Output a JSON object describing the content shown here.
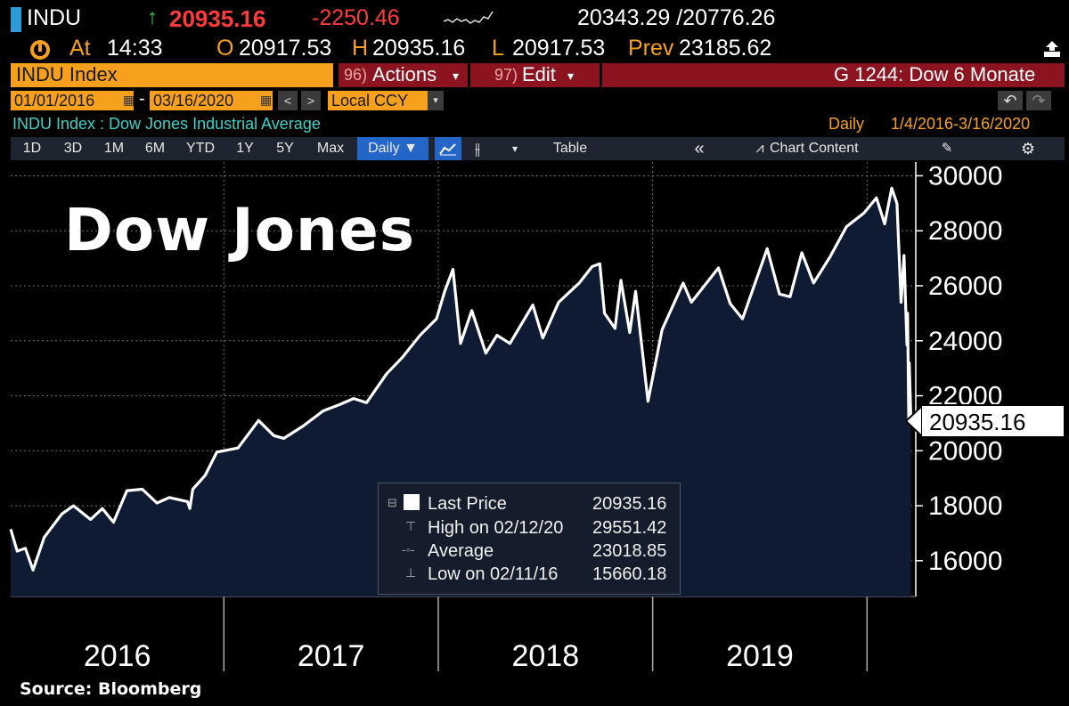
{
  "header": {
    "ticker": "INDU",
    "arrow_icon": "up-arrow-icon",
    "last_price": "20935.16",
    "change": "-2250.46",
    "bid_ask": "20343.29 /20776.26",
    "at_label": "At",
    "time": "14:33",
    "open_label": "O",
    "open": "20917.53",
    "high_label": "H",
    "high": "20935.16",
    "low_label": "L",
    "low": "20917.53",
    "prev_label": "Prev",
    "prev": "23185.62"
  },
  "command_bar": {
    "security": "INDU Index",
    "actions_num": "96)",
    "actions_label": "Actions",
    "edit_num": "97)",
    "edit_label": "Edit",
    "dropdown_glyph": "▾",
    "graph_title": "G 1244: Dow 6 Monate"
  },
  "range_bar": {
    "start_date": "01/01/2016",
    "dash": "-",
    "end_date": "03/16/2020",
    "prev_glyph": "<",
    "next_glyph": ">",
    "currency": "Local CCY",
    "undo_glyph": "↶",
    "redo_glyph": "↷"
  },
  "subtitle": {
    "security_name": "INDU Index : Dow Jones Industrial Average",
    "frequency": "Daily",
    "period": "1/4/2016-3/16/2020"
  },
  "toolbar": {
    "periods": [
      "1D",
      "3D",
      "1M",
      "6M",
      "YTD",
      "1Y",
      "5Y",
      "Max"
    ],
    "frequency": "Daily ▼",
    "table_label": "Table",
    "collapse_glyph": "«",
    "chart_content_label": "Chart Content",
    "icons": [
      "line-chart-icon",
      "candlestick-icon",
      "annotate-icon",
      "gear-icon"
    ]
  },
  "legend": {
    "rows": [
      {
        "label": "Last Price",
        "value": "20935.16"
      },
      {
        "label": "High on 02/12/20",
        "value": "29551.42"
      },
      {
        "label": "Average",
        "value": "23018.85"
      },
      {
        "label": "Low on 02/11/16",
        "value": "15660.18"
      }
    ]
  },
  "last_price_tag": "20935.16",
  "source": "Source:  Bloomberg",
  "colors": {
    "background": "#000000",
    "area_fill": "#0e1b33",
    "line": "#ffffff",
    "accent_orange": "#f7a01d",
    "accent_red": "#8b1420",
    "change_red": "#ff3b3b",
    "up_green": "#3dcc4a"
  },
  "chart_data": {
    "type": "area",
    "title": "Dow Jones",
    "xlabel": "",
    "ylabel": "",
    "x_ticks": [
      "2016",
      "2017",
      "2018",
      "2019"
    ],
    "y_ticks": [
      "16000",
      "18000",
      "20000",
      "22000",
      "24000",
      "26000",
      "28000",
      "30000"
    ],
    "ylim": [
      14700,
      30500
    ],
    "xlim": [
      "2016-01-04",
      "2020-03-24"
    ],
    "grid": true,
    "series": [
      {
        "name": "Last Price",
        "x": [
          "2016-01-04",
          "2016-01-15",
          "2016-01-29",
          "2016-02-11",
          "2016-03-01",
          "2016-03-31",
          "2016-04-20",
          "2016-05-19",
          "2016-06-08",
          "2016-06-27",
          "2016-07-20",
          "2016-08-15",
          "2016-09-09",
          "2016-09-30",
          "2016-10-31",
          "2016-11-04",
          "2016-11-09",
          "2016-11-30",
          "2016-12-20",
          "2017-01-25",
          "2017-03-01",
          "2017-03-27",
          "2017-04-13",
          "2017-05-16",
          "2017-06-19",
          "2017-07-14",
          "2017-08-10",
          "2017-09-01",
          "2017-10-05",
          "2017-11-01",
          "2017-12-01",
          "2017-12-29",
          "2018-01-12",
          "2018-01-26",
          "2018-02-08",
          "2018-02-27",
          "2018-03-23",
          "2018-04-11",
          "2018-05-03",
          "2018-06-11",
          "2018-06-28",
          "2018-07-25",
          "2018-08-29",
          "2018-09-20",
          "2018-10-03",
          "2018-10-11",
          "2018-10-29",
          "2018-11-08",
          "2018-11-23",
          "2018-12-03",
          "2018-12-24",
          "2019-01-17",
          "2019-02-22",
          "2019-03-08",
          "2019-04-23",
          "2019-05-13",
          "2019-06-03",
          "2019-07-15",
          "2019-08-05",
          "2019-08-23",
          "2019-09-12",
          "2019-10-02",
          "2019-10-30",
          "2019-11-27",
          "2019-12-27",
          "2020-01-17",
          "2020-01-31",
          "2020-02-12",
          "2020-02-21",
          "2020-02-28",
          "2020-03-04",
          "2020-03-09",
          "2020-03-10",
          "2020-03-12",
          "2020-03-13",
          "2020-03-16"
        ],
        "values": [
          17150,
          16350,
          16450,
          15660,
          16850,
          17700,
          18000,
          17500,
          17900,
          17400,
          18550,
          18600,
          18100,
          18300,
          18150,
          17900,
          18600,
          19100,
          19950,
          20100,
          21100,
          20550,
          20450,
          20900,
          21450,
          21650,
          21900,
          21750,
          22800,
          23400,
          24200,
          24800,
          25800,
          26600,
          23900,
          25100,
          23550,
          24200,
          23900,
          25300,
          24100,
          25400,
          26100,
          26700,
          26800,
          25000,
          24450,
          26200,
          24300,
          25800,
          21800,
          24400,
          26100,
          25400,
          26650,
          25350,
          24800,
          27350,
          25700,
          25600,
          27200,
          26100,
          27050,
          28150,
          28650,
          29200,
          28250,
          29550,
          28990,
          25400,
          27100,
          23850,
          25000,
          21200,
          23200,
          20935
        ]
      }
    ]
  }
}
